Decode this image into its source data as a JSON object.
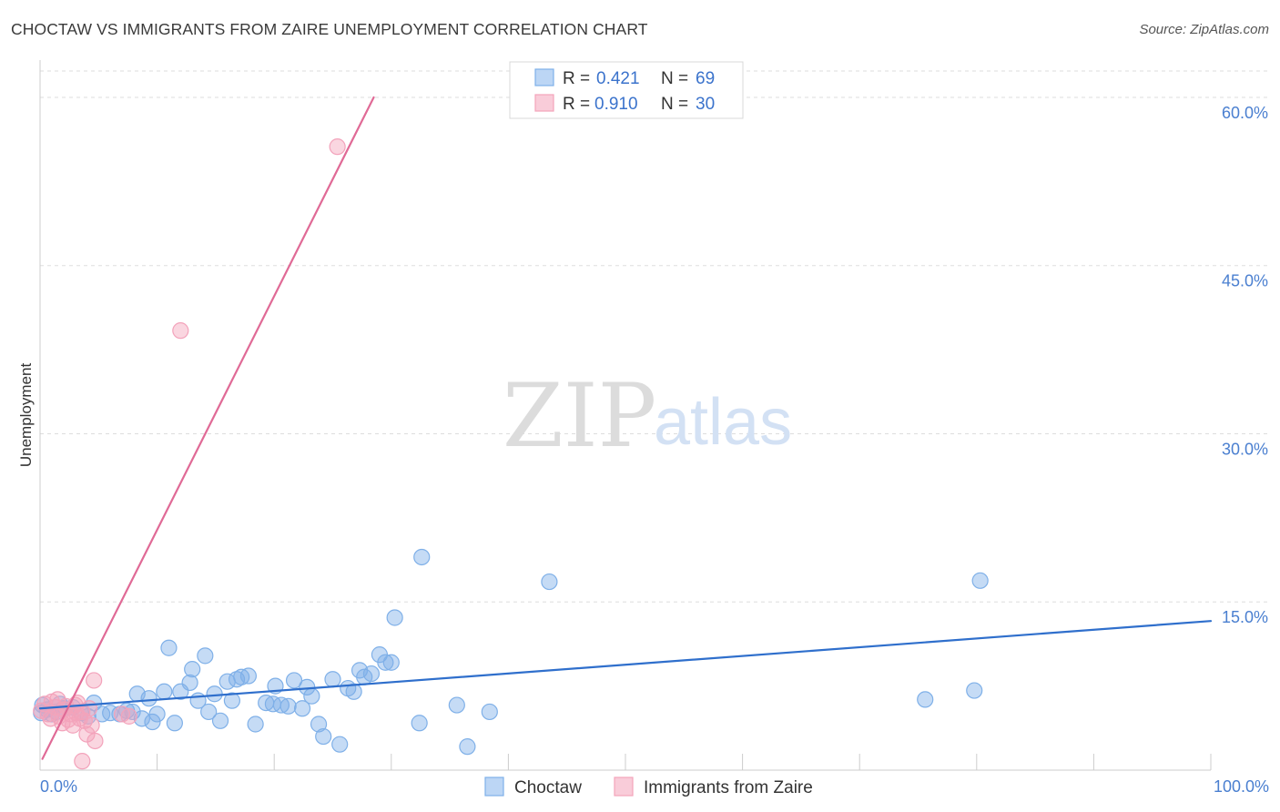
{
  "chart_data": {
    "type": "scatter",
    "title": "CHOCTAW VS IMMIGRANTS FROM ZAIRE UNEMPLOYMENT CORRELATION CHART",
    "source": "Source: ZipAtlas.com",
    "ylabel": "Unemployment",
    "xlim": [
      0,
      100
    ],
    "ylim": [
      0,
      63
    ],
    "x_tick_labels": [
      "0.0%",
      "100.0%"
    ],
    "y_ticks": [
      15,
      30,
      45,
      60
    ],
    "y_tick_labels": [
      "15.0%",
      "30.0%",
      "45.0%",
      "60.0%"
    ],
    "grid": true,
    "watermark": {
      "zip": "ZIP",
      "atlas": "atlas"
    },
    "legend": [
      {
        "r_label": "R = ",
        "r": "0.421",
        "n_label": "N = ",
        "n": "69"
      },
      {
        "r_label": "R = ",
        "r": "0.910",
        "n_label": "N = ",
        "n": "30"
      }
    ],
    "series": [
      {
        "name": "Choctaw",
        "color": "#7fb0e8",
        "line_color": "#2f6fcc",
        "trend": [
          [
            0,
            5.5
          ],
          [
            100,
            13.3
          ]
        ],
        "points": [
          [
            0.2,
            5.8
          ],
          [
            0.6,
            5.4
          ],
          [
            1.0,
            5.0
          ],
          [
            1.4,
            5.2
          ],
          [
            2.0,
            5.5
          ],
          [
            2.8,
            5.6
          ],
          [
            3.5,
            5.1
          ],
          [
            4.1,
            4.8
          ],
          [
            4.6,
            6.0
          ],
          [
            5.3,
            5.0
          ],
          [
            6.0,
            5.1
          ],
          [
            6.8,
            5.0
          ],
          [
            7.4,
            5.3
          ],
          [
            7.9,
            5.2
          ],
          [
            8.3,
            6.8
          ],
          [
            8.7,
            4.6
          ],
          [
            9.3,
            6.4
          ],
          [
            9.6,
            4.3
          ],
          [
            10.0,
            5.0
          ],
          [
            10.6,
            7.0
          ],
          [
            11.0,
            10.9
          ],
          [
            11.5,
            4.2
          ],
          [
            12.0,
            7.0
          ],
          [
            12.8,
            7.8
          ],
          [
            13.0,
            9.0
          ],
          [
            13.5,
            6.2
          ],
          [
            14.1,
            10.2
          ],
          [
            14.4,
            5.2
          ],
          [
            14.9,
            6.8
          ],
          [
            15.4,
            4.4
          ],
          [
            16.0,
            7.9
          ],
          [
            16.4,
            6.2
          ],
          [
            16.8,
            8.1
          ],
          [
            17.2,
            8.3
          ],
          [
            17.8,
            8.4
          ],
          [
            18.4,
            4.1
          ],
          [
            19.3,
            6.0
          ],
          [
            19.9,
            5.9
          ],
          [
            20.1,
            7.5
          ],
          [
            20.6,
            5.8
          ],
          [
            21.2,
            5.7
          ],
          [
            21.7,
            8.0
          ],
          [
            22.4,
            5.5
          ],
          [
            22.8,
            7.4
          ],
          [
            23.2,
            6.6
          ],
          [
            23.8,
            4.1
          ],
          [
            24.2,
            3.0
          ],
          [
            25.0,
            8.1
          ],
          [
            25.6,
            2.3
          ],
          [
            26.3,
            7.3
          ],
          [
            26.8,
            7.0
          ],
          [
            27.3,
            8.9
          ],
          [
            27.7,
            8.3
          ],
          [
            28.3,
            8.6
          ],
          [
            29.0,
            10.3
          ],
          [
            29.5,
            9.6
          ],
          [
            30.0,
            9.6
          ],
          [
            30.3,
            13.6
          ],
          [
            32.4,
            4.2
          ],
          [
            32.6,
            19.0
          ],
          [
            35.6,
            5.8
          ],
          [
            36.5,
            2.1
          ],
          [
            38.4,
            5.2
          ],
          [
            43.5,
            16.8
          ],
          [
            75.6,
            6.3
          ],
          [
            79.8,
            7.1
          ],
          [
            80.3,
            16.9
          ],
          [
            0.1,
            5.1
          ],
          [
            1.7,
            5.9
          ]
        ]
      },
      {
        "name": "Immigrants from Zaire",
        "color": "#f3a3bb",
        "line_color": "#e06a96",
        "trend": [
          [
            0.2,
            1.0
          ],
          [
            28.5,
            60.0
          ]
        ],
        "points": [
          [
            0.1,
            5.3
          ],
          [
            0.4,
            5.9
          ],
          [
            0.7,
            5.0
          ],
          [
            1.0,
            6.1
          ],
          [
            1.3,
            5.6
          ],
          [
            1.6,
            4.8
          ],
          [
            1.9,
            4.2
          ],
          [
            2.1,
            5.4
          ],
          [
            2.4,
            4.5
          ],
          [
            2.6,
            5.0
          ],
          [
            2.8,
            4.0
          ],
          [
            3.0,
            5.8
          ],
          [
            3.2,
            6.0
          ],
          [
            3.4,
            4.6
          ],
          [
            3.6,
            5.2
          ],
          [
            3.8,
            4.4
          ],
          [
            4.0,
            3.2
          ],
          [
            4.2,
            5.5
          ],
          [
            4.4,
            4.0
          ],
          [
            3.6,
            0.8
          ],
          [
            4.6,
            8.0
          ],
          [
            4.7,
            2.6
          ],
          [
            7.0,
            5.0
          ],
          [
            7.6,
            4.8
          ],
          [
            12.0,
            39.2
          ],
          [
            25.4,
            55.6
          ],
          [
            0.9,
            4.6
          ],
          [
            1.5,
            6.3
          ],
          [
            2.2,
            5.7
          ],
          [
            3.1,
            5.1
          ]
        ]
      }
    ]
  }
}
